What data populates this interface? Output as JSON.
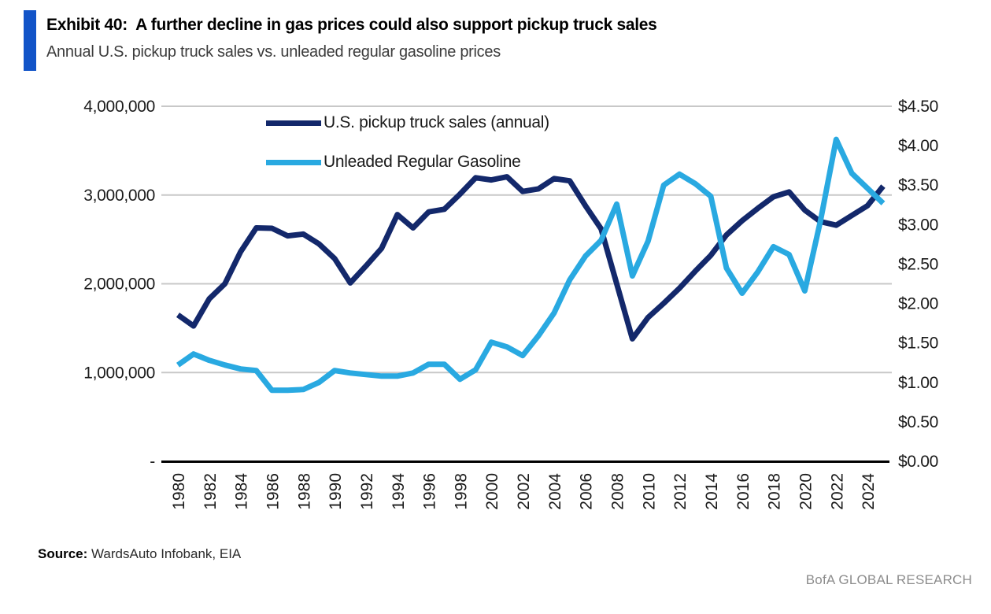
{
  "exhibit": {
    "title": "Exhibit 40:  A further decline in gas prices could also support pickup truck sales",
    "subtitle": "Annual U.S. pickup truck sales vs. unleaded regular gasoline prices",
    "source_label": "Source:",
    "source_text": " WardsAuto Infobank, EIA",
    "watermark": "BofA GLOBAL RESEARCH",
    "accent_color": "#1254c8"
  },
  "chart_data": {
    "type": "line",
    "legend_position": "top-center-inside",
    "grid": true,
    "grid_color": "#c8c8c8",
    "axis_color": "#000000",
    "x": [
      1980,
      1981,
      1982,
      1983,
      1984,
      1985,
      1986,
      1987,
      1988,
      1989,
      1990,
      1991,
      1992,
      1993,
      1994,
      1995,
      1996,
      1997,
      1998,
      1999,
      2000,
      2001,
      2002,
      2003,
      2004,
      2005,
      2006,
      2007,
      2008,
      2009,
      2010,
      2011,
      2012,
      2013,
      2014,
      2015,
      2016,
      2017,
      2018,
      2019,
      2020,
      2021,
      2022,
      2023,
      2024,
      2025
    ],
    "series": [
      {
        "name": "U.S. pickup truck sales (annual)",
        "axis": "left",
        "color": "#13286b",
        "values": [
          1650000,
          1525000,
          1830000,
          2000000,
          2360000,
          2630000,
          2625000,
          2540000,
          2560000,
          2450000,
          2285000,
          2010000,
          2200000,
          2400000,
          2780000,
          2630000,
          2810000,
          2840000,
          3010000,
          3195000,
          3170000,
          3205000,
          3040000,
          3070000,
          3185000,
          3160000,
          2880000,
          2620000,
          2000000,
          1380000,
          1620000,
          1780000,
          1950000,
          2140000,
          2320000,
          2550000,
          2710000,
          2850000,
          2980000,
          3035000,
          2830000,
          2700000,
          2660000,
          2770000,
          2880000,
          3100000
        ]
      },
      {
        "name": "Unleaded Regular Gasoline",
        "axis": "right",
        "color": "#29a9e1",
        "values": [
          1.22,
          1.36,
          1.28,
          1.22,
          1.17,
          1.15,
          0.9,
          0.9,
          0.91,
          1.0,
          1.15,
          1.12,
          1.1,
          1.08,
          1.08,
          1.12,
          1.23,
          1.23,
          1.04,
          1.16,
          1.51,
          1.45,
          1.34,
          1.59,
          1.88,
          2.3,
          2.6,
          2.8,
          3.26,
          2.35,
          2.79,
          3.5,
          3.64,
          3.52,
          3.36,
          2.45,
          2.13,
          2.4,
          2.72,
          2.62,
          2.16,
          3.05,
          4.08,
          3.65,
          3.46,
          3.27
        ]
      }
    ],
    "left_axis": {
      "min": 0,
      "max": 4000000,
      "tick_values": [
        4000000,
        3000000,
        2000000,
        1000000,
        0
      ],
      "tick_labels": [
        "4,000,000",
        "3,000,000",
        "2,000,000",
        "1,000,000",
        "-"
      ]
    },
    "right_axis": {
      "min": 0,
      "max": 4.5,
      "tick_values": [
        4.5,
        4.0,
        3.5,
        3.0,
        2.5,
        2.0,
        1.5,
        1.0,
        0.5,
        0.0
      ],
      "tick_labels": [
        "$4.50",
        "$4.00",
        "$3.50",
        "$3.00",
        "$2.50",
        "$2.00",
        "$1.50",
        "$1.00",
        "$0.50",
        "$0.00"
      ]
    },
    "x_axis": {
      "range": [
        1980,
        2025
      ],
      "tick_values": [
        1980,
        1982,
        1984,
        1986,
        1988,
        1990,
        1992,
        1994,
        1996,
        1998,
        2000,
        2002,
        2004,
        2006,
        2008,
        2010,
        2012,
        2014,
        2016,
        2018,
        2020,
        2022,
        2024
      ],
      "tick_labels": [
        "1980",
        "1982",
        "1984",
        "1986",
        "1988",
        "1990",
        "1992",
        "1994",
        "1996",
        "1998",
        "2000",
        "2002",
        "2004",
        "2006",
        "2008",
        "2010",
        "2012",
        "2014",
        "2016",
        "2018",
        "2020",
        "2022",
        "2024"
      ]
    }
  }
}
